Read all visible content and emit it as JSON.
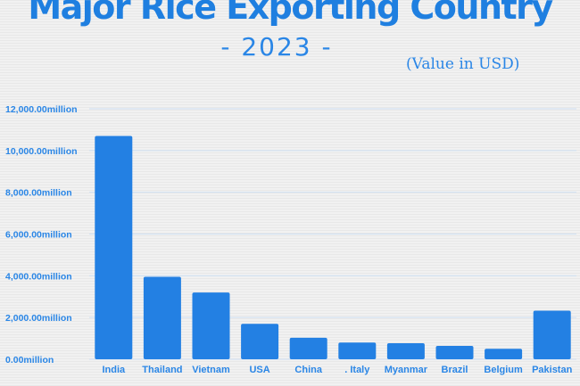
{
  "header": {
    "title": "Major Rice Exporting Country",
    "subtitle": "- 2023 -",
    "unit_note": "(Value in USD)"
  },
  "colors": {
    "bar": "#2380e3",
    "text": "#2a86e6",
    "grid": "#cfe0f2"
  },
  "chart_data": {
    "type": "bar",
    "title": "Major Rice Exporting Country",
    "subtitle": "- 2023 -",
    "xlabel": "",
    "ylabel": "",
    "categories": [
      "India",
      "Thailand",
      "Vietnam",
      "USA",
      "China",
      ". Italy",
      "Myanmar",
      "Brazil",
      "Belgium",
      "Pakistan"
    ],
    "values": [
      10700,
      3950,
      3200,
      1700,
      1030,
      800,
      770,
      640,
      500,
      2330
    ],
    "ylim": [
      0,
      12000
    ],
    "yticks": [
      0,
      2000,
      4000,
      6000,
      8000,
      10000,
      12000
    ],
    "ytick_labels": [
      "0.00million",
      "2,000.00million",
      "4,000.00million",
      "6,000.00million",
      "8,000.00million",
      "10,000.00million",
      "12,000.00million"
    ],
    "grid": true,
    "legend": "none"
  }
}
